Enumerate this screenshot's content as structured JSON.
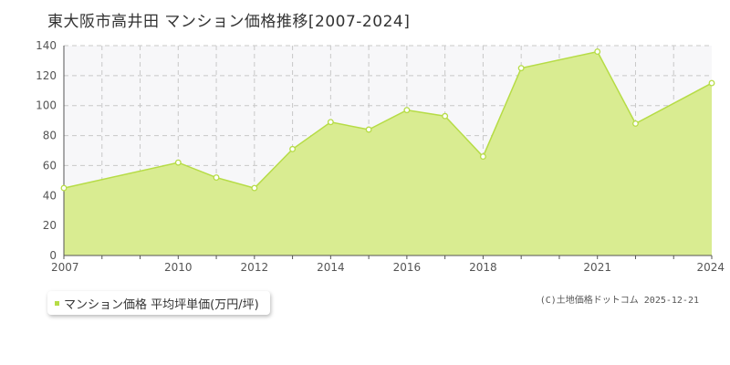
{
  "colors": {
    "fill": "#d9ec91",
    "line": "#b6dc46",
    "plot_bg": "#f7f7f9",
    "grid": "#c8c8c8"
  },
  "chart_data": {
    "type": "area",
    "title": "東大阪市高井田 マンション価格推移[2007-2024]",
    "xlabel": "",
    "ylabel": "",
    "xlim": [
      2007,
      2024
    ],
    "ylim": [
      0,
      140
    ],
    "y_ticks": [
      0,
      20,
      40,
      60,
      80,
      100,
      120,
      140
    ],
    "x_tick_labels": [
      2007,
      2010,
      2012,
      2014,
      2016,
      2018,
      2021,
      2024
    ],
    "x_grid": [
      2008,
      2009,
      2010,
      2011,
      2012,
      2013,
      2014,
      2015,
      2016,
      2017,
      2018,
      2019,
      2020,
      2021,
      2022,
      2023
    ],
    "grid": true,
    "legend_position": "bottom-left",
    "series": [
      {
        "name": "マンション価格 平均坪単価(万円/坪)",
        "x": [
          2007,
          2010,
          2011,
          2012,
          2013,
          2014,
          2015,
          2016,
          2017,
          2018,
          2019,
          2021,
          2022,
          2024
        ],
        "y": [
          45,
          62,
          52,
          45,
          71,
          89,
          84,
          97,
          93,
          66,
          125,
          136,
          88,
          115
        ]
      }
    ]
  },
  "credit": "(C)土地価格ドットコム 2025-12-21"
}
